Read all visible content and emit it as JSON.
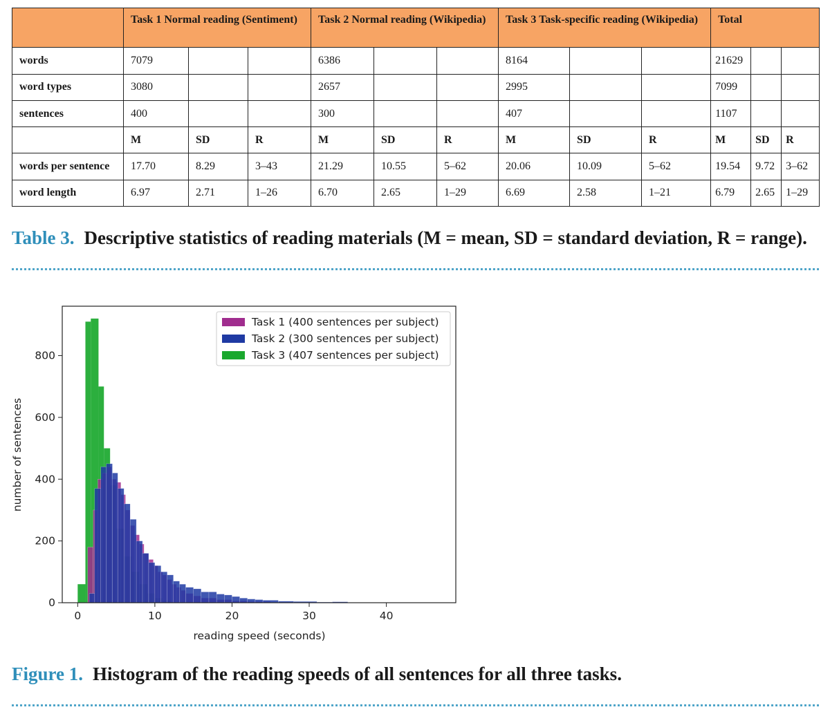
{
  "table": {
    "header": {
      "task1": "Task 1 Normal reading (Sentiment)",
      "task2": "Task 2 Normal reading (Wikipedia)",
      "task3": "Task 3 Task-specific reading (Wikipedia)",
      "total": "Total"
    },
    "rows": {
      "words": {
        "label": "words",
        "t1": "7079",
        "t2": "6386",
        "t3": "8164",
        "total": "21629"
      },
      "word_types": {
        "label": "word types",
        "t1": "3080",
        "t2": "2657",
        "t3": "2995",
        "total": "7099"
      },
      "sentences": {
        "label": "sentences",
        "t1": "400",
        "t2": "300",
        "t3": "407",
        "total": "1107"
      },
      "stat_labels": {
        "m": "M",
        "sd": "SD",
        "r": "R"
      },
      "words_per_sentence": {
        "label": "words per sentence",
        "t1": [
          "17.70",
          "8.29",
          "3–43"
        ],
        "t2": [
          "21.29",
          "10.55",
          "5–62"
        ],
        "t3": [
          "20.06",
          "10.09",
          "5–62"
        ],
        "total": [
          "19.54",
          "9.72",
          "3–62"
        ]
      },
      "word_length": {
        "label": "word length",
        "t1": [
          "6.97",
          "2.71",
          "1–26"
        ],
        "t2": [
          "6.70",
          "2.65",
          "1–29"
        ],
        "t3": [
          "6.69",
          "2.58",
          "1–21"
        ],
        "total": [
          "6.79",
          "2.65",
          "1–29"
        ]
      }
    }
  },
  "table_caption": {
    "label": "Table 3.",
    "text": "Descriptive statistics of reading materials (M = mean, SD = standard deviation, R = range)."
  },
  "figure_caption": {
    "label": "Figure 1.",
    "text": "Histogram of the reading speeds of all sentences for all three tasks."
  },
  "chart_data": {
    "type": "bar",
    "subtype": "overlaid histogram",
    "xlabel": "reading speed (seconds)",
    "ylabel": "number of sentences",
    "xlim": [
      -2,
      49
    ],
    "ylim": [
      0,
      960
    ],
    "xticks": [
      0,
      10,
      20,
      30,
      40
    ],
    "yticks": [
      0,
      200,
      400,
      600,
      800
    ],
    "grid": false,
    "legend_position": "top-right",
    "series": [
      {
        "name": "Task 3 (407 sentences per subject)",
        "color": "#1aa82e",
        "bins": [
          [
            0,
            1,
            60
          ],
          [
            1,
            1.7,
            910
          ],
          [
            1.7,
            2.7,
            920
          ],
          [
            2.7,
            3.4,
            700
          ],
          [
            3.4,
            4.2,
            500
          ],
          [
            4.2,
            5,
            380
          ],
          [
            5,
            6,
            240
          ],
          [
            6,
            7,
            150
          ],
          [
            7,
            8,
            100
          ],
          [
            8,
            9,
            60
          ],
          [
            9,
            10,
            30
          ],
          [
            10,
            11,
            15
          ],
          [
            11,
            12,
            8
          ]
        ]
      },
      {
        "name": "Task 1 (400 sentences per subject)",
        "color": "#a02d8e",
        "bins": [
          [
            1.3,
            2,
            180
          ],
          [
            2,
            2.6,
            300
          ],
          [
            2.6,
            3.2,
            400
          ],
          [
            3.2,
            3.8,
            420
          ],
          [
            3.8,
            4.4,
            440
          ],
          [
            4.4,
            5,
            400
          ],
          [
            5,
            5.6,
            390
          ],
          [
            5.6,
            6.2,
            350
          ],
          [
            6.2,
            6.8,
            300
          ],
          [
            6.8,
            7.4,
            250
          ],
          [
            7.4,
            8,
            220
          ],
          [
            8,
            8.6,
            190
          ],
          [
            8.6,
            9.2,
            160
          ],
          [
            9.2,
            9.8,
            140
          ],
          [
            9.8,
            10.4,
            120
          ],
          [
            10.4,
            11,
            100
          ],
          [
            11,
            11.6,
            90
          ],
          [
            11.6,
            12.2,
            75
          ],
          [
            12.2,
            12.8,
            60
          ],
          [
            12.8,
            13.4,
            50
          ],
          [
            13.4,
            14,
            40
          ],
          [
            14,
            15,
            30
          ],
          [
            15,
            16,
            22
          ],
          [
            16,
            18,
            15
          ],
          [
            18,
            20,
            10
          ],
          [
            20,
            22,
            6
          ],
          [
            22,
            25,
            4
          ]
        ]
      },
      {
        "name": "Task 2 (300 sentences per subject)",
        "color": "#1f3aa3",
        "bins": [
          [
            1.5,
            2.2,
            30
          ],
          [
            2.2,
            3,
            370
          ],
          [
            3,
            3.7,
            440
          ],
          [
            3.7,
            4.5,
            450
          ],
          [
            4.5,
            5.2,
            420
          ],
          [
            5.2,
            6,
            370
          ],
          [
            6,
            6.8,
            320
          ],
          [
            6.8,
            7.6,
            270
          ],
          [
            7.6,
            8.4,
            200
          ],
          [
            8.4,
            9.2,
            160
          ],
          [
            9.2,
            10,
            130
          ],
          [
            10,
            10.8,
            120
          ],
          [
            10.8,
            11.6,
            100
          ],
          [
            11.6,
            12.4,
            90
          ],
          [
            12.4,
            13.2,
            70
          ],
          [
            13.2,
            14,
            60
          ],
          [
            14,
            15,
            50
          ],
          [
            15,
            16,
            45
          ],
          [
            16,
            17,
            35
          ],
          [
            17,
            18,
            35
          ],
          [
            18,
            19,
            28
          ],
          [
            19,
            20,
            25
          ],
          [
            20,
            21,
            20
          ],
          [
            21,
            22,
            15
          ],
          [
            22,
            23,
            12
          ],
          [
            23,
            24,
            10
          ],
          [
            24,
            26,
            8
          ],
          [
            26,
            28,
            5
          ],
          [
            28,
            31,
            4
          ],
          [
            31,
            33,
            2
          ],
          [
            33,
            35,
            3
          ],
          [
            35,
            39,
            1
          ],
          [
            39,
            44,
            1
          ]
        ]
      }
    ]
  }
}
